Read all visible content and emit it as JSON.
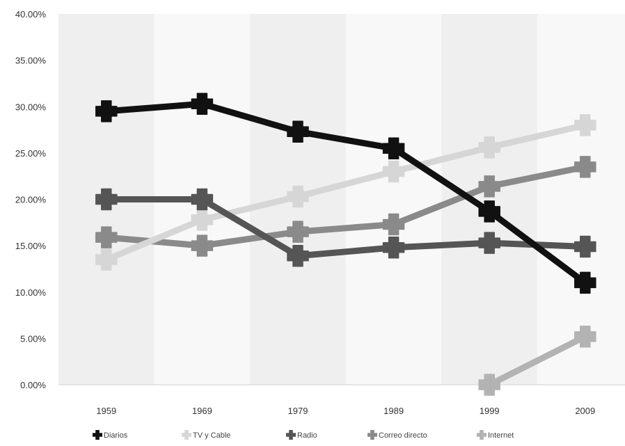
{
  "chart_data": {
    "type": "line",
    "title": "",
    "xlabel": "",
    "ylabel": "",
    "categories": [
      "1959",
      "1969",
      "1979",
      "1989",
      "1999",
      "2009"
    ],
    "ylim": [
      0,
      40
    ],
    "y_ticks": [
      "0.00%",
      "5.00%",
      "10.00%",
      "15.00%",
      "20.00%",
      "25.00%",
      "30.00%",
      "35.00%",
      "40.00%"
    ],
    "y_tick_values": [
      0,
      5,
      10,
      15,
      20,
      25,
      30,
      35,
      40
    ],
    "grid": false,
    "band_colors": [
      "#efefef",
      "#f8f8f8"
    ],
    "legend_position": "bottom",
    "series": [
      {
        "name": "Diarios",
        "color": "#111111",
        "values": [
          29.5,
          30.3,
          27.3,
          25.5,
          18.7,
          11.0
        ]
      },
      {
        "name": "TV y Cable",
        "color": "#d6d6d6",
        "values": [
          13.5,
          17.8,
          20.3,
          23.0,
          25.6,
          28.0
        ]
      },
      {
        "name": "Radio",
        "color": "#555555",
        "values": [
          20.0,
          20.0,
          13.9,
          14.8,
          15.3,
          14.9
        ]
      },
      {
        "name": "Correo directo",
        "color": "#8a8a8a",
        "values": [
          15.9,
          15.0,
          16.5,
          17.3,
          21.4,
          23.5
        ]
      },
      {
        "name": "Internet",
        "color": "#b3b3b3",
        "values": [
          null,
          null,
          null,
          null,
          0.0,
          5.2
        ]
      }
    ]
  }
}
